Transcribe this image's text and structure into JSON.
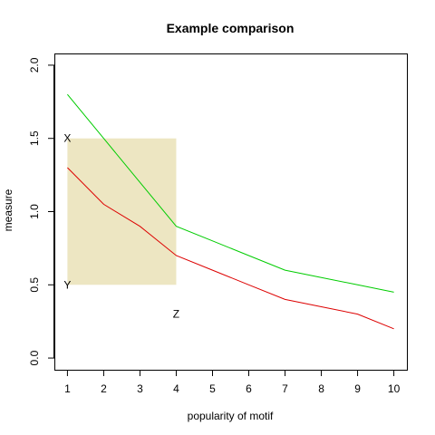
{
  "chart_data": {
    "type": "line",
    "title": "Example comparison",
    "xlabel": "popularity of motif",
    "ylabel": "measure",
    "xlim": [
      1,
      10
    ],
    "ylim": [
      0,
      2
    ],
    "x_ticks": [
      "1",
      "2",
      "3",
      "4",
      "5",
      "6",
      "7",
      "8",
      "9",
      "10"
    ],
    "y_ticks": [
      "0.0",
      "0.5",
      "1.0",
      "1.5",
      "2.0"
    ],
    "grid": false,
    "legend": "none",
    "background_color": "#ffffff",
    "series": [
      {
        "color": "#00cc00",
        "x": [
          1,
          2,
          3,
          4,
          5,
          6,
          7,
          8,
          9,
          10
        ],
        "y": [
          1.8,
          1.5,
          1.2,
          0.9,
          0.8,
          0.7,
          0.6,
          0.55,
          0.5,
          0.45
        ]
      },
      {
        "color": "#dd0000",
        "x": [
          1,
          2,
          3,
          4,
          5,
          6,
          7,
          8,
          9,
          10
        ],
        "y": [
          1.3,
          1.05,
          0.9,
          0.7,
          0.6,
          0.5,
          0.4,
          0.35,
          0.3,
          0.2
        ]
      }
    ],
    "shaded_region": {
      "x": [
        1,
        4
      ],
      "y": [
        0.5,
        1.5
      ],
      "color": "#ede6c2"
    },
    "annotations": [
      {
        "text": "X",
        "x": 1,
        "y": 1.5
      },
      {
        "text": "Y",
        "x": 1,
        "y": 0.5
      },
      {
        "text": "Z",
        "x": 4,
        "y": 0.3
      }
    ]
  }
}
